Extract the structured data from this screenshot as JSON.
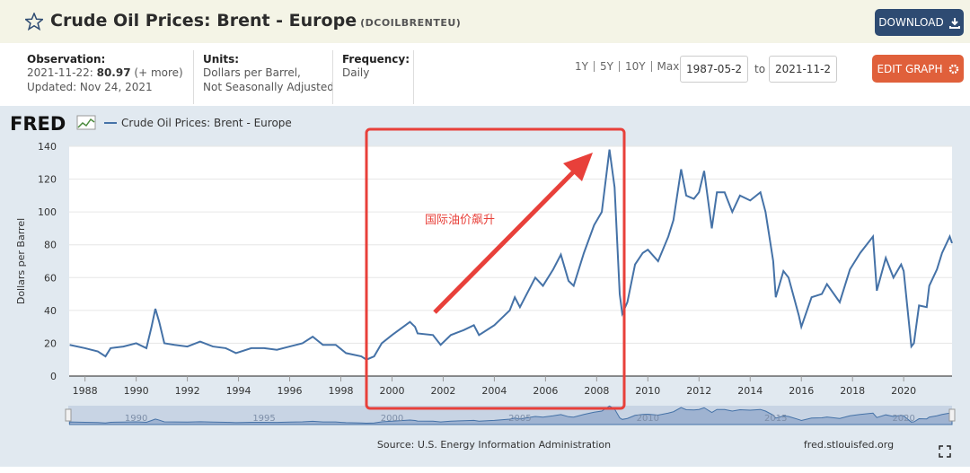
{
  "header": {
    "title": "Crude Oil Prices: Brent - Europe",
    "series_id": "(DCOILBRENTEU)",
    "download": "DOWNLOAD"
  },
  "info": {
    "observation_label": "Observation:",
    "observation_date": "2021-11-22:",
    "observation_value": "80.97",
    "more": "(+ more)",
    "updated": "Updated: Nov 24, 2021",
    "units_label": "Units:",
    "units_1": "Dollars per Barrel,",
    "units_2": "Not Seasonally Adjusted",
    "frequency_label": "Frequency:",
    "frequency": "Daily"
  },
  "controls": {
    "ranges": [
      "1Y",
      "5Y",
      "10Y",
      "Max"
    ],
    "start": "1987-05-2",
    "to": "to",
    "end": "2021-11-2",
    "edit": "EDIT GRAPH"
  },
  "chart_data": {
    "type": "line",
    "logo": "FRED",
    "ylabel": "Dollars per Barrel",
    "annotation": "国际油价飙升",
    "source": "Source: U.S. Energy Information Administration",
    "site": "fred.stlouisfed.org",
    "xlim": [
      1987.38,
      2021.89
    ],
    "xticks": [
      1988,
      1990,
      1992,
      1994,
      1996,
      1998,
      2000,
      2002,
      2004,
      2006,
      2008,
      2010,
      2012,
      2014,
      2016,
      2018,
      2020
    ],
    "ylim": [
      0,
      140
    ],
    "yticks": [
      0,
      20,
      40,
      60,
      80,
      100,
      120,
      140
    ],
    "grid": true,
    "navigator_ticks": [
      1990,
      1995,
      2000,
      2005,
      2010,
      2015,
      2020
    ],
    "x": [
      1987.4,
      1988,
      1988.5,
      1988.8,
      1989,
      1989.5,
      1990,
      1990.4,
      1990.6,
      1990.75,
      1990.9,
      1991.1,
      1991.5,
      1992,
      1992.5,
      1993,
      1993.5,
      1993.9,
      1994.5,
      1995,
      1995.5,
      1996,
      1996.5,
      1996.9,
      1997.3,
      1997.8,
      1998.2,
      1998.8,
      1999,
      1999.3,
      1999.6,
      2000,
      2000.7,
      2000.9,
      2001,
      2001.6,
      2001.9,
      2002.3,
      2002.8,
      2003.2,
      2003.4,
      2003.8,
      2004,
      2004.6,
      2004.8,
      2005,
      2005.6,
      2005.9,
      2006.3,
      2006.6,
      2006.9,
      2007.1,
      2007.5,
      2007.9,
      2008.2,
      2008.5,
      2008.7,
      2008.9,
      2009,
      2009.2,
      2009.5,
      2009.8,
      2010,
      2010.4,
      2010.8,
      2011,
      2011.3,
      2011.5,
      2011.8,
      2012,
      2012.2,
      2012.5,
      2012.7,
      2013,
      2013.3,
      2013.6,
      2014,
      2014.4,
      2014.6,
      2014.9,
      2015,
      2015.3,
      2015.5,
      2015.9,
      2016,
      2016.4,
      2016.8,
      2017,
      2017.5,
      2017.9,
      2018.3,
      2018.8,
      2018.95,
      2019.3,
      2019.6,
      2019.9,
      2020,
      2020.3,
      2020.4,
      2020.6,
      2020.9,
      2021,
      2021.3,
      2021.5,
      2021.8,
      2021.89
    ],
    "series": [
      {
        "name": "Crude Oil Prices: Brent - Europe",
        "color": "#4572a7",
        "values": [
          19,
          17,
          15,
          12,
          17,
          18,
          20,
          17,
          30,
          41,
          33,
          20,
          19,
          18,
          21,
          18,
          17,
          14,
          17,
          17,
          16,
          18,
          20,
          24,
          19,
          19,
          14,
          12,
          10,
          12,
          20,
          25,
          33,
          30,
          26,
          25,
          19,
          25,
          28,
          31,
          25,
          29,
          31,
          40,
          48,
          42,
          60,
          55,
          65,
          74,
          58,
          55,
          75,
          92,
          100,
          138,
          115,
          50,
          38,
          45,
          68,
          75,
          77,
          70,
          85,
          95,
          126,
          110,
          108,
          112,
          125,
          90,
          112,
          112,
          100,
          110,
          107,
          112,
          100,
          70,
          48,
          64,
          60,
          37,
          30,
          48,
          50,
          56,
          45,
          65,
          75,
          85,
          52,
          72,
          60,
          68,
          64,
          18,
          20,
          43,
          42,
          55,
          65,
          75,
          85,
          80.97
        ]
      }
    ]
  }
}
